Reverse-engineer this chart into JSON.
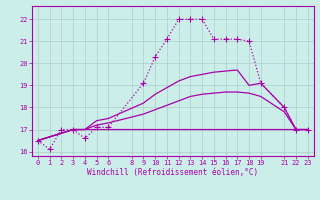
{
  "background_color": "#cceee8",
  "grid_color": "#aacccc",
  "line_color": "#aa00aa",
  "xlim": [
    -0.5,
    23.5
  ],
  "ylim": [
    15.8,
    22.6
  ],
  "xticks": [
    0,
    1,
    2,
    3,
    4,
    5,
    6,
    8,
    9,
    10,
    11,
    12,
    13,
    14,
    15,
    16,
    17,
    18,
    19,
    21,
    22,
    23
  ],
  "yticks": [
    16,
    17,
    18,
    19,
    20,
    21,
    22
  ],
  "xlabel": "Windchill (Refroidissement éolien,°C)",
  "series": [
    {
      "x": [
        0,
        1,
        2,
        3,
        4,
        5,
        6,
        9,
        10,
        11,
        12,
        13,
        14,
        15,
        16,
        17,
        18,
        19,
        21,
        22,
        23
      ],
      "y": [
        16.5,
        16.1,
        17.0,
        17.0,
        16.6,
        17.1,
        17.1,
        19.1,
        20.3,
        21.1,
        22.0,
        22.0,
        22.0,
        21.1,
        21.1,
        21.1,
        21.0,
        19.1,
        18.0,
        17.0,
        17.0
      ],
      "marker": "+",
      "markersize": 4,
      "linewidth": 0.9,
      "linestyle": "dotted"
    },
    {
      "x": [
        0,
        3,
        4,
        5,
        6,
        9,
        10,
        11,
        12,
        13,
        14,
        15,
        16,
        17,
        18,
        19,
        21,
        22,
        23
      ],
      "y": [
        16.5,
        17.0,
        17.0,
        17.4,
        17.5,
        18.2,
        18.6,
        18.9,
        19.2,
        19.4,
        19.5,
        19.6,
        19.65,
        19.7,
        19.0,
        19.1,
        18.0,
        17.0,
        17.0
      ],
      "marker": null,
      "markersize": 0,
      "linewidth": 0.9,
      "linestyle": "solid"
    },
    {
      "x": [
        0,
        3,
        4,
        5,
        6,
        9,
        10,
        11,
        12,
        13,
        14,
        15,
        16,
        17,
        18,
        19,
        21,
        22,
        23
      ],
      "y": [
        16.5,
        17.0,
        17.0,
        17.2,
        17.3,
        17.7,
        17.9,
        18.1,
        18.3,
        18.5,
        18.6,
        18.65,
        18.7,
        18.7,
        18.65,
        18.5,
        17.8,
        17.0,
        17.0
      ],
      "marker": null,
      "markersize": 0,
      "linewidth": 0.9,
      "linestyle": "solid"
    },
    {
      "x": [
        0,
        3,
        4,
        5,
        6,
        9,
        10,
        11,
        12,
        13,
        14,
        15,
        16,
        17,
        18,
        19,
        21,
        22,
        23
      ],
      "y": [
        16.5,
        17.0,
        17.0,
        17.0,
        17.0,
        17.0,
        17.0,
        17.0,
        17.0,
        17.0,
        17.0,
        17.0,
        17.0,
        17.0,
        17.0,
        17.0,
        17.0,
        17.0,
        17.0
      ],
      "marker": null,
      "markersize": 0,
      "linewidth": 0.9,
      "linestyle": "solid"
    }
  ]
}
